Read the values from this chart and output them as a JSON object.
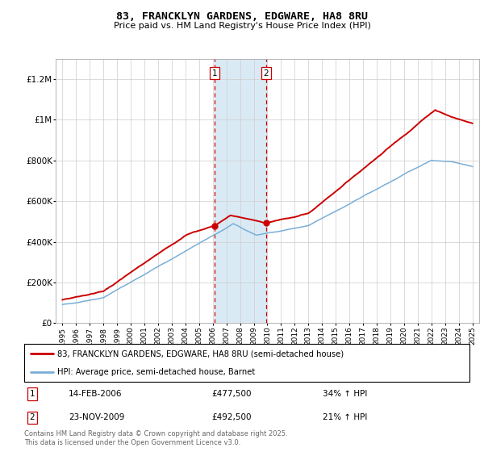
{
  "title": "83, FRANCKLYN GARDENS, EDGWARE, HA8 8RU",
  "subtitle": "Price paid vs. HM Land Registry's House Price Index (HPI)",
  "legend_line1": "83, FRANCKLYN GARDENS, EDGWARE, HA8 8RU (semi-detached house)",
  "legend_line2": "HPI: Average price, semi-detached house, Barnet",
  "footer": "Contains HM Land Registry data © Crown copyright and database right 2025.\nThis data is licensed under the Open Government Licence v3.0.",
  "sale1_date": "14-FEB-2006",
  "sale1_price": "£477,500",
  "sale1_hpi": "34% ↑ HPI",
  "sale2_date": "23-NOV-2009",
  "sale2_price": "£492,500",
  "sale2_hpi": "21% ↑ HPI",
  "sale1_x": 2006.12,
  "sale2_x": 2009.9,
  "shade_start": 2006.12,
  "shade_end": 2009.9,
  "ylim": [
    0,
    1300000
  ],
  "xlim_start": 1994.5,
  "xlim_end": 2025.5,
  "price_color": "#cc0000",
  "hpi_color": "#7aaed6",
  "shade_color": "#daeaf5",
  "vline_color": "#cc0000",
  "yticks": [
    0,
    200000,
    400000,
    600000,
    800000,
    1000000,
    1200000
  ],
  "ytick_labels": [
    "£0",
    "£200K",
    "£400K",
    "£600K",
    "£800K",
    "£1M",
    "£1.2M"
  ],
  "xticks": [
    1995,
    1996,
    1997,
    1998,
    1999,
    2000,
    2001,
    2002,
    2003,
    2004,
    2005,
    2006,
    2007,
    2008,
    2009,
    2010,
    2011,
    2012,
    2013,
    2014,
    2015,
    2016,
    2017,
    2018,
    2019,
    2020,
    2021,
    2022,
    2023,
    2024,
    2025
  ]
}
